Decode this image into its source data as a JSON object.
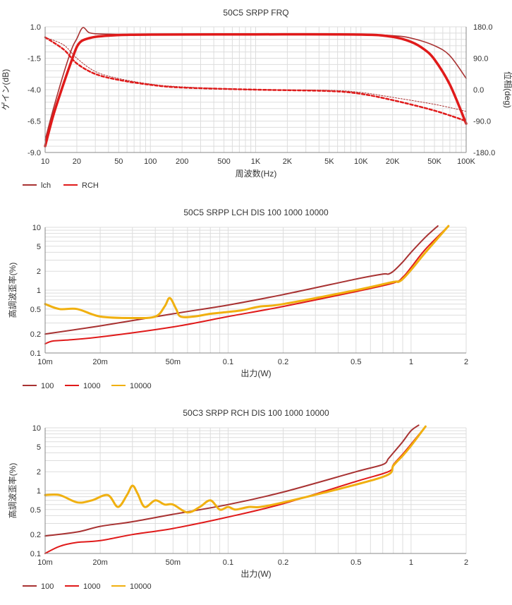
{
  "colors": {
    "lch": "#a83232",
    "rch": "#e01a1a",
    "s100": "#a83232",
    "s1000": "#e01a1a",
    "s10000": "#f0b010"
  },
  "chart_data": [
    {
      "type": "line",
      "title": "50C5 SRPP FRQ",
      "xlabel": "周波数(Hz)",
      "ylabel": "ゲイン(dB)",
      "y2label": "位相(deg)",
      "x_scale": "log",
      "xlim": [
        10,
        100000
      ],
      "ylim": [
        -9.0,
        1.0
      ],
      "y2lim": [
        -180,
        180
      ],
      "x_ticks": [
        10,
        20,
        50,
        100,
        200,
        500,
        1000,
        2000,
        5000,
        10000,
        20000,
        50000,
        100000
      ],
      "x_tick_labels": [
        "10",
        "20",
        "50",
        "100",
        "200",
        "500",
        "1K",
        "2K",
        "5K",
        "10K",
        "20K",
        "50K",
        "100K"
      ],
      "y_ticks": [
        1.0,
        -1.5,
        -4.0,
        -6.5,
        -9.0
      ],
      "y_tick_labels": [
        "1.0",
        "-1.5",
        "-4.0",
        "-6.5",
        "-9.0"
      ],
      "y2_ticks": [
        180,
        90,
        0,
        -90,
        -180
      ],
      "y2_tick_labels": [
        "180.0",
        "90.0",
        "0.0",
        "-90.0",
        "-180.0"
      ],
      "grid": true,
      "legend": "bottom-left",
      "series": [
        {
          "name": "lch",
          "kind": "gain",
          "x": [
            10,
            12,
            15,
            18,
            20,
            21,
            22,
            23,
            24,
            26,
            30,
            40,
            60,
            100,
            1000,
            10000,
            20000,
            30000,
            50000,
            70000,
            100000
          ],
          "y": [
            -8.0,
            -5.5,
            -2.7,
            -0.7,
            0.05,
            0.45,
            0.8,
            0.95,
            0.85,
            0.55,
            0.45,
            0.42,
            0.4,
            0.4,
            0.4,
            0.38,
            0.3,
            0.1,
            -0.5,
            -1.3,
            -3.1
          ]
        },
        {
          "name": "rch",
          "kind": "gain",
          "x": [
            10,
            12,
            15,
            18,
            20,
            22,
            25,
            30,
            40,
            60,
            100,
            1000,
            10000,
            20000,
            30000,
            40000,
            50000,
            70000,
            100000
          ],
          "y": [
            -8.5,
            -6.0,
            -3.5,
            -1.6,
            -0.6,
            -0.15,
            0.05,
            0.2,
            0.3,
            0.36,
            0.38,
            0.4,
            0.38,
            0.2,
            -0.2,
            -0.8,
            -1.6,
            -3.6,
            -6.7
          ]
        },
        {
          "name": "lch",
          "kind": "phase",
          "x": [
            10,
            15,
            20,
            30,
            50,
            100,
            200,
            1000,
            5000,
            10000,
            20000,
            50000,
            100000
          ],
          "y": [
            150,
            128,
            90,
            52,
            32,
            16,
            8,
            0,
            -2,
            -8,
            -22,
            -42,
            -62
          ]
        },
        {
          "name": "rch",
          "kind": "phase",
          "x": [
            10,
            15,
            20,
            30,
            50,
            100,
            200,
            1000,
            5000,
            10000,
            20000,
            50000,
            100000
          ],
          "y": [
            150,
            115,
            75,
            45,
            28,
            14,
            6,
            0,
            -4,
            -12,
            -30,
            -60,
            -90
          ]
        }
      ]
    },
    {
      "type": "line",
      "title": "50C5 SRPP LCH DIS 100 1000 10000",
      "xlabel": "出力(W)",
      "ylabel": "高調波歪率(%)",
      "x_scale": "log",
      "y_scale": "log",
      "xlim": [
        0.01,
        2
      ],
      "ylim": [
        0.1,
        10
      ],
      "x_ticks": [
        0.01,
        0.02,
        0.05,
        0.1,
        0.2,
        0.5,
        1,
        2
      ],
      "x_tick_labels": [
        "10m",
        "20m",
        "50m",
        "0.1",
        "0.2",
        "0.5",
        "1",
        "2"
      ],
      "y_ticks": [
        10,
        5,
        2,
        1,
        0.5,
        0.2,
        0.1
      ],
      "y_tick_labels": [
        "10",
        "5",
        "2",
        "1",
        "0.5",
        "0.2",
        "0.1"
      ],
      "grid": true,
      "legend": "bottom-left",
      "series": [
        {
          "name": "100",
          "x": [
            0.01,
            0.02,
            0.05,
            0.1,
            0.2,
            0.5,
            0.7,
            0.75,
            0.8,
            0.9,
            1.0,
            1.2,
            1.4
          ],
          "y": [
            0.2,
            0.27,
            0.42,
            0.58,
            0.85,
            1.5,
            1.8,
            1.8,
            2.0,
            2.8,
            4.0,
            7.0,
            10.5
          ]
        },
        {
          "name": "1000",
          "x": [
            0.01,
            0.011,
            0.013,
            0.02,
            0.05,
            0.1,
            0.2,
            0.5,
            0.8,
            0.9,
            1.0,
            1.2,
            1.6
          ],
          "y": [
            0.14,
            0.155,
            0.16,
            0.18,
            0.26,
            0.38,
            0.55,
            0.95,
            1.3,
            1.6,
            2.3,
            4.5,
            10.5
          ]
        },
        {
          "name": "10000",
          "x": [
            0.01,
            0.012,
            0.015,
            0.02,
            0.03,
            0.04,
            0.045,
            0.048,
            0.052,
            0.055,
            0.065,
            0.08,
            0.1,
            0.12,
            0.15,
            0.2,
            0.5,
            0.8,
            0.85,
            0.9,
            1.0,
            1.2,
            1.6
          ],
          "y": [
            0.6,
            0.5,
            0.5,
            0.38,
            0.36,
            0.38,
            0.55,
            0.75,
            0.5,
            0.38,
            0.38,
            0.42,
            0.45,
            0.48,
            0.55,
            0.6,
            1.0,
            1.35,
            1.35,
            1.5,
            2.1,
            4.0,
            10.5
          ]
        }
      ]
    },
    {
      "type": "line",
      "title": "50C3 SRPP RCH DIS 100 1000 10000",
      "xlabel": "出力(W)",
      "ylabel": "高調波歪率(%)",
      "x_scale": "log",
      "y_scale": "log",
      "xlim": [
        0.01,
        2
      ],
      "ylim": [
        0.1,
        10
      ],
      "x_ticks": [
        0.01,
        0.02,
        0.05,
        0.1,
        0.2,
        0.5,
        1,
        2
      ],
      "x_tick_labels": [
        "10m",
        "20m",
        "50m",
        "0.1",
        "0.2",
        "0.5",
        "1",
        "2"
      ],
      "y_ticks": [
        10,
        5,
        2,
        1,
        0.5,
        0.2,
        0.1
      ],
      "y_tick_labels": [
        "10",
        "5",
        "2",
        "1",
        "0.5",
        "0.2",
        "0.1"
      ],
      "grid": true,
      "legend": "bottom-left",
      "series": [
        {
          "name": "100",
          "x": [
            0.01,
            0.015,
            0.02,
            0.03,
            0.05,
            0.1,
            0.2,
            0.5,
            0.7,
            0.75,
            0.8,
            0.9,
            1.0,
            1.1
          ],
          "y": [
            0.19,
            0.22,
            0.27,
            0.32,
            0.42,
            0.6,
            0.95,
            2.0,
            2.6,
            3.2,
            4.0,
            6.0,
            9.0,
            11.0
          ]
        },
        {
          "name": "1000",
          "x": [
            0.01,
            0.012,
            0.015,
            0.02,
            0.03,
            0.05,
            0.1,
            0.2,
            0.5,
            0.75,
            0.8,
            0.9,
            1.0,
            1.2
          ],
          "y": [
            0.1,
            0.13,
            0.15,
            0.16,
            0.2,
            0.25,
            0.38,
            0.62,
            1.4,
            2.0,
            2.6,
            3.8,
            5.5,
            10.5
          ]
        },
        {
          "name": "10000",
          "x": [
            0.01,
            0.012,
            0.015,
            0.018,
            0.022,
            0.025,
            0.028,
            0.03,
            0.032,
            0.035,
            0.04,
            0.045,
            0.05,
            0.06,
            0.07,
            0.08,
            0.09,
            0.1,
            0.11,
            0.13,
            0.15,
            0.2,
            0.5,
            0.75,
            0.8,
            0.9,
            1.0,
            1.2
          ],
          "y": [
            0.85,
            0.85,
            0.65,
            0.7,
            0.85,
            0.55,
            0.85,
            1.2,
            0.9,
            0.55,
            0.7,
            0.6,
            0.6,
            0.45,
            0.55,
            0.7,
            0.5,
            0.55,
            0.5,
            0.55,
            0.55,
            0.65,
            1.25,
            1.8,
            2.5,
            3.6,
            5.2,
            10.5
          ]
        }
      ]
    }
  ]
}
